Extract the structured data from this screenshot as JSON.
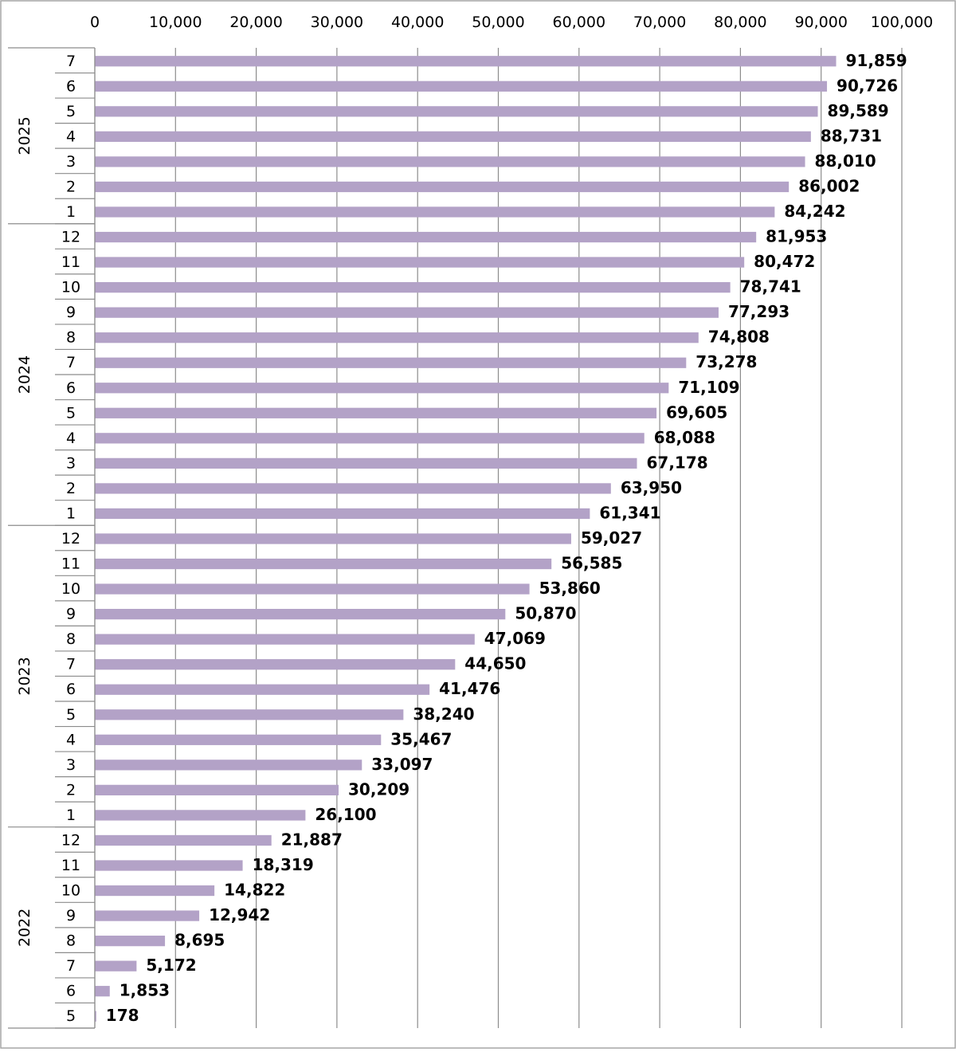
{
  "chart_data": {
    "type": "bar",
    "orientation": "horizontal",
    "title": "",
    "xlabel": "",
    "ylabel": "",
    "xlim": [
      0,
      100000
    ],
    "x_ticks": [
      0,
      10000,
      20000,
      30000,
      40000,
      50000,
      60000,
      70000,
      80000,
      90000,
      100000
    ],
    "x_tick_labels": [
      "0",
      "10,000",
      "20,000",
      "30,000",
      "40,000",
      "50,000",
      "60,000",
      "70,000",
      "80,000",
      "90,000",
      "100,000"
    ],
    "x_axis_position": "top",
    "grid": "vertical",
    "legend": "none",
    "bar_color": "#b3a2c7",
    "groups": [
      {
        "year": "2025",
        "months": [
          "7",
          "6",
          "5",
          "4",
          "3",
          "2",
          "1"
        ],
        "values": [
          91859,
          90726,
          89589,
          88731,
          88010,
          86002,
          84242
        ],
        "labels": [
          "91,859",
          "90,726",
          "89,589",
          "88,731",
          "88,010",
          "86,002",
          "84,242"
        ]
      },
      {
        "year": "2024",
        "months": [
          "12",
          "11",
          "10",
          "9",
          "8",
          "7",
          "6",
          "5",
          "4",
          "3",
          "2",
          "1"
        ],
        "values": [
          81953,
          80472,
          78741,
          77293,
          74808,
          73278,
          71109,
          69605,
          68088,
          67178,
          63950,
          61341
        ],
        "labels": [
          "81,953",
          "80,472",
          "78,741",
          "77,293",
          "74,808",
          "73,278",
          "71,109",
          "69,605",
          "68,088",
          "67,178",
          "63,950",
          "61,341"
        ]
      },
      {
        "year": "2023",
        "months": [
          "12",
          "11",
          "10",
          "9",
          "8",
          "7",
          "6",
          "5",
          "4",
          "3",
          "2",
          "1"
        ],
        "values": [
          59027,
          56585,
          53860,
          50870,
          47069,
          44650,
          41476,
          38240,
          35467,
          33097,
          30209,
          26100
        ],
        "labels": [
          "59,027",
          "56,585",
          "53,860",
          "50,870",
          "47,069",
          "44,650",
          "41,476",
          "38,240",
          "35,467",
          "33,097",
          "30,209",
          "26,100"
        ]
      },
      {
        "year": "2022",
        "months": [
          "12",
          "11",
          "10",
          "9",
          "8",
          "7",
          "6",
          "5"
        ],
        "values": [
          21887,
          18319,
          14822,
          12942,
          8695,
          5172,
          1853,
          178
        ],
        "labels": [
          "21,887",
          "18,319",
          "14,822",
          "12,942",
          "8,695",
          "5,172",
          "1,853",
          "178"
        ]
      }
    ]
  }
}
